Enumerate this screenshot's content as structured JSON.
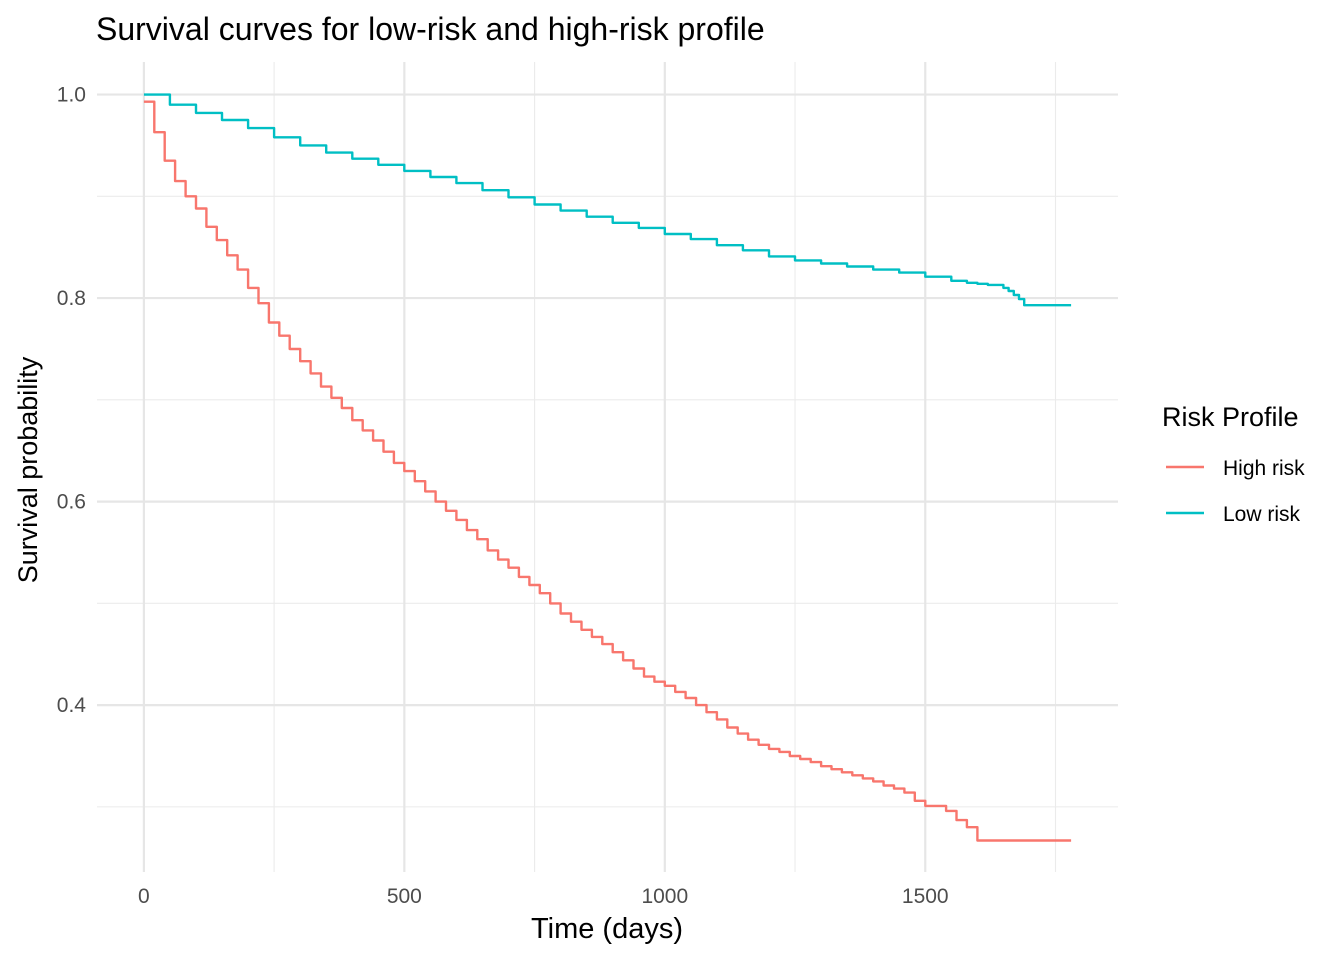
{
  "chart_data": {
    "type": "line",
    "step": true,
    "title": "Survival curves for low-risk and high-risk profile",
    "xlabel": "Time (days)",
    "ylabel": "Survival probability",
    "xlim": [
      -90,
      1870
    ],
    "ylim": [
      0.236,
      1.032
    ],
    "x_ticks": [
      0,
      500,
      1000,
      1500
    ],
    "x_tick_labels": [
      "0",
      "500",
      "1000",
      "1500"
    ],
    "y_ticks": [
      0.4,
      0.6,
      0.8,
      1.0
    ],
    "y_tick_labels": [
      "0.4",
      "0.6",
      "0.8",
      "1.0"
    ],
    "x_minor": [
      250,
      750,
      1250,
      1750
    ],
    "y_minor": [
      0.3,
      0.5,
      0.7,
      0.9
    ],
    "grid": true,
    "legend": {
      "title": "Risk Profile",
      "position": "right"
    },
    "series": [
      {
        "name": "High risk",
        "color": "#F8766D",
        "x": [
          0,
          20,
          40,
          60,
          80,
          100,
          120,
          140,
          160,
          180,
          200,
          220,
          240,
          260,
          280,
          300,
          320,
          340,
          360,
          380,
          400,
          420,
          440,
          460,
          480,
          500,
          520,
          540,
          560,
          580,
          600,
          620,
          640,
          660,
          680,
          700,
          720,
          740,
          760,
          780,
          800,
          820,
          840,
          860,
          880,
          900,
          920,
          940,
          960,
          980,
          1000,
          1020,
          1040,
          1060,
          1080,
          1100,
          1120,
          1140,
          1160,
          1180,
          1200,
          1220,
          1240,
          1260,
          1280,
          1300,
          1320,
          1340,
          1360,
          1380,
          1400,
          1420,
          1440,
          1460,
          1480,
          1500,
          1520,
          1540,
          1560,
          1580,
          1600,
          1620,
          1640,
          1660,
          1680,
          1700,
          1720,
          1740,
          1760,
          1780
        ],
        "y": [
          0.993,
          0.963,
          0.935,
          0.915,
          0.9,
          0.888,
          0.87,
          0.857,
          0.842,
          0.828,
          0.81,
          0.795,
          0.776,
          0.763,
          0.75,
          0.738,
          0.726,
          0.713,
          0.702,
          0.692,
          0.68,
          0.67,
          0.66,
          0.649,
          0.638,
          0.63,
          0.62,
          0.61,
          0.6,
          0.591,
          0.582,
          0.572,
          0.563,
          0.552,
          0.543,
          0.535,
          0.526,
          0.518,
          0.51,
          0.5,
          0.49,
          0.482,
          0.474,
          0.467,
          0.46,
          0.452,
          0.444,
          0.436,
          0.428,
          0.423,
          0.419,
          0.413,
          0.407,
          0.4,
          0.393,
          0.386,
          0.378,
          0.372,
          0.366,
          0.361,
          0.357,
          0.354,
          0.35,
          0.347,
          0.344,
          0.34,
          0.337,
          0.334,
          0.331,
          0.328,
          0.325,
          0.321,
          0.318,
          0.314,
          0.306,
          0.301,
          0.301,
          0.296,
          0.287,
          0.28,
          0.267,
          0.267,
          0.267,
          0.267,
          0.267,
          0.267,
          0.267,
          0.267,
          0.267,
          0.267
        ]
      },
      {
        "name": "Low risk",
        "color": "#00BFC4",
        "x": [
          0,
          50,
          100,
          150,
          200,
          250,
          300,
          350,
          400,
          450,
          500,
          550,
          600,
          650,
          700,
          750,
          800,
          850,
          900,
          950,
          1000,
          1050,
          1100,
          1150,
          1200,
          1250,
          1300,
          1350,
          1400,
          1450,
          1500,
          1550,
          1580,
          1600,
          1620,
          1640,
          1650,
          1660,
          1670,
          1680,
          1690,
          1700,
          1720,
          1750,
          1780
        ],
        "y": [
          1.0,
          0.99,
          0.982,
          0.975,
          0.967,
          0.958,
          0.95,
          0.943,
          0.937,
          0.931,
          0.925,
          0.919,
          0.913,
          0.906,
          0.899,
          0.892,
          0.886,
          0.88,
          0.874,
          0.869,
          0.863,
          0.858,
          0.852,
          0.847,
          0.841,
          0.837,
          0.834,
          0.831,
          0.828,
          0.825,
          0.821,
          0.817,
          0.815,
          0.814,
          0.813,
          0.813,
          0.81,
          0.807,
          0.803,
          0.799,
          0.793,
          0.793,
          0.793,
          0.793,
          0.793
        ]
      }
    ]
  }
}
